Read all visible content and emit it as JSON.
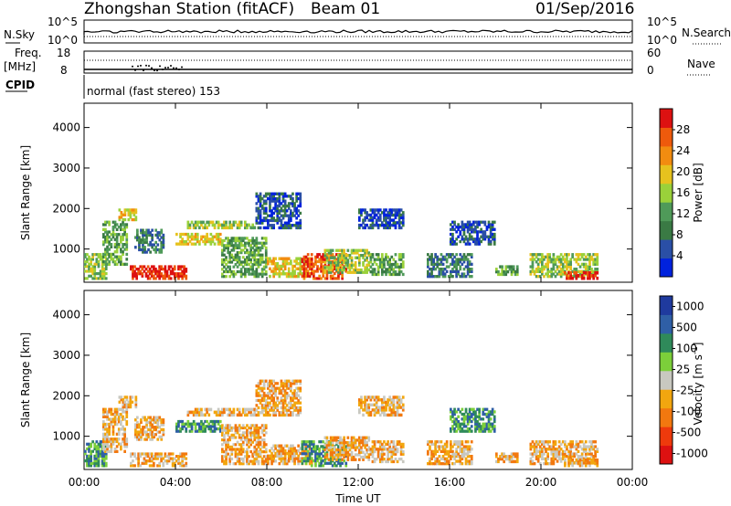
{
  "header": {
    "title": "Zhongshan Station (fitACF)",
    "beam": "Beam 01",
    "date": "01/Sep/2016"
  },
  "top_panels": {
    "nsky": {
      "left_label": "N.Sky",
      "right_label": "N.Search",
      "left_ticks": [
        "10^5",
        "10^0"
      ],
      "right_ticks": [
        "10^5",
        "10^0"
      ]
    },
    "freq": {
      "left_label_line1": "Freq.",
      "left_label_line2": "[MHz]",
      "right_label": "Nave",
      "left_ticks": [
        "18",
        "8"
      ],
      "right_ticks": [
        "60",
        "0"
      ]
    },
    "cpid": {
      "label": "CPID",
      "text": "normal (fast stereo) 153"
    }
  },
  "colors": {
    "power": [
      "#0022dd",
      "#2a4fa6",
      "#3a7a44",
      "#4f9a59",
      "#9ad13a",
      "#e6c21e",
      "#f28c10",
      "#ee5a0c",
      "#dd1111"
    ],
    "velocity": [
      "#dd1111",
      "#ee3a0c",
      "#f2780f",
      "#f2a60f",
      "#c8c8c0",
      "#7ccf3a",
      "#2f8a5a",
      "#2f5fa6",
      "#1f3a9e"
    ]
  },
  "chart_data": [
    {
      "type": "heatmap",
      "name": "Power",
      "ylabel": "Slant Range [km]",
      "xlabel": "",
      "xlim": [
        0,
        24
      ],
      "ylim": [
        180,
        4600
      ],
      "yticks": [
        "1000",
        "2000",
        "3000",
        "4000"
      ],
      "ytick_values": [
        1000,
        2000,
        3000,
        4000
      ],
      "xtick_values": [
        0,
        4,
        8,
        12,
        16,
        20,
        24
      ],
      "colorbar": {
        "label": "Power [dB]",
        "min": 0,
        "max": 32,
        "ticks": [
          "4",
          "8",
          "12",
          "16",
          "20",
          "24",
          "28"
        ],
        "tick_values": [
          4,
          8,
          12,
          16,
          20,
          24,
          28
        ]
      }
    },
    {
      "type": "heatmap",
      "name": "Velocity",
      "ylabel": "Slant Range [km]",
      "xlabel": "Time UT",
      "xlim": [
        0,
        24
      ],
      "ylim": [
        180,
        4600
      ],
      "yticks": [
        "1000",
        "2000",
        "3000",
        "4000"
      ],
      "ytick_values": [
        1000,
        2000,
        3000,
        4000
      ],
      "xticks": [
        "00:00",
        "04:00",
        "08:00",
        "12:00",
        "16:00",
        "20:00",
        "00:00"
      ],
      "xtick_values": [
        0,
        4,
        8,
        12,
        16,
        20,
        24
      ],
      "colorbar": {
        "label": "Velocity [m s^-1]",
        "ticks": [
          "1000",
          "500",
          "100",
          "25",
          "-25",
          "-100",
          "-500",
          "-1000"
        ]
      }
    }
  ]
}
